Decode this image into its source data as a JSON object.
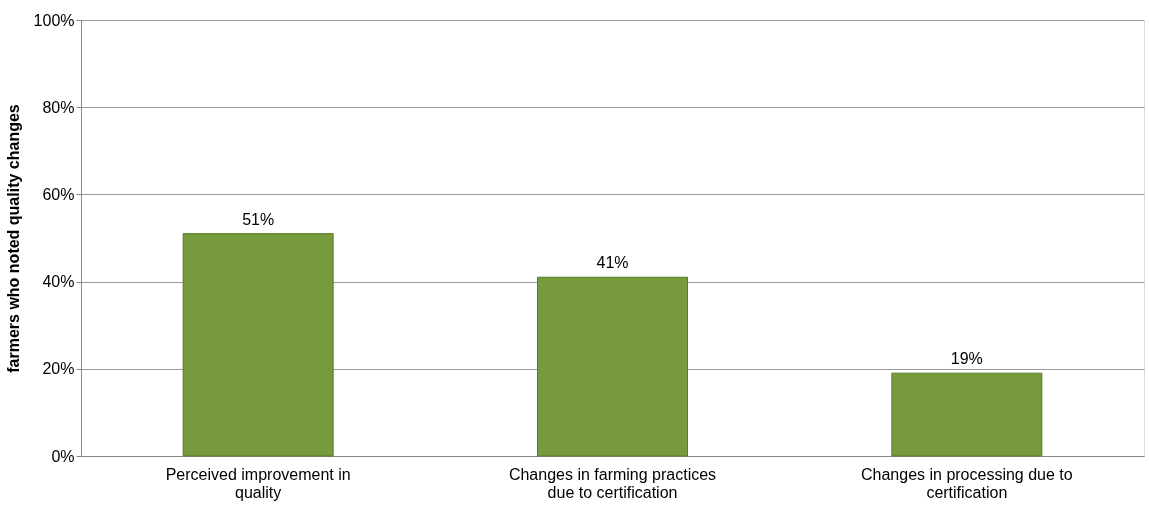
{
  "chart_data": {
    "type": "bar",
    "ylabel": "farmers who noted quality changes",
    "categories": [
      "Perceived improvement in quality",
      "Changes in farming practices due to certification",
      "Changes in processing due to certification"
    ],
    "values": [
      51,
      41,
      19
    ],
    "value_labels": [
      "51%",
      "41%",
      "19%"
    ],
    "color": "#779a3c",
    "ylim": [
      0,
      100
    ],
    "yticks": [
      {
        "value": 0,
        "label": "0%"
      },
      {
        "value": 20,
        "label": "20%"
      },
      {
        "value": 40,
        "label": "40%"
      },
      {
        "value": 60,
        "label": "60%"
      },
      {
        "value": 80,
        "label": "80%"
      },
      {
        "value": 100,
        "label": "100%"
      }
    ],
    "grid": "y"
  }
}
